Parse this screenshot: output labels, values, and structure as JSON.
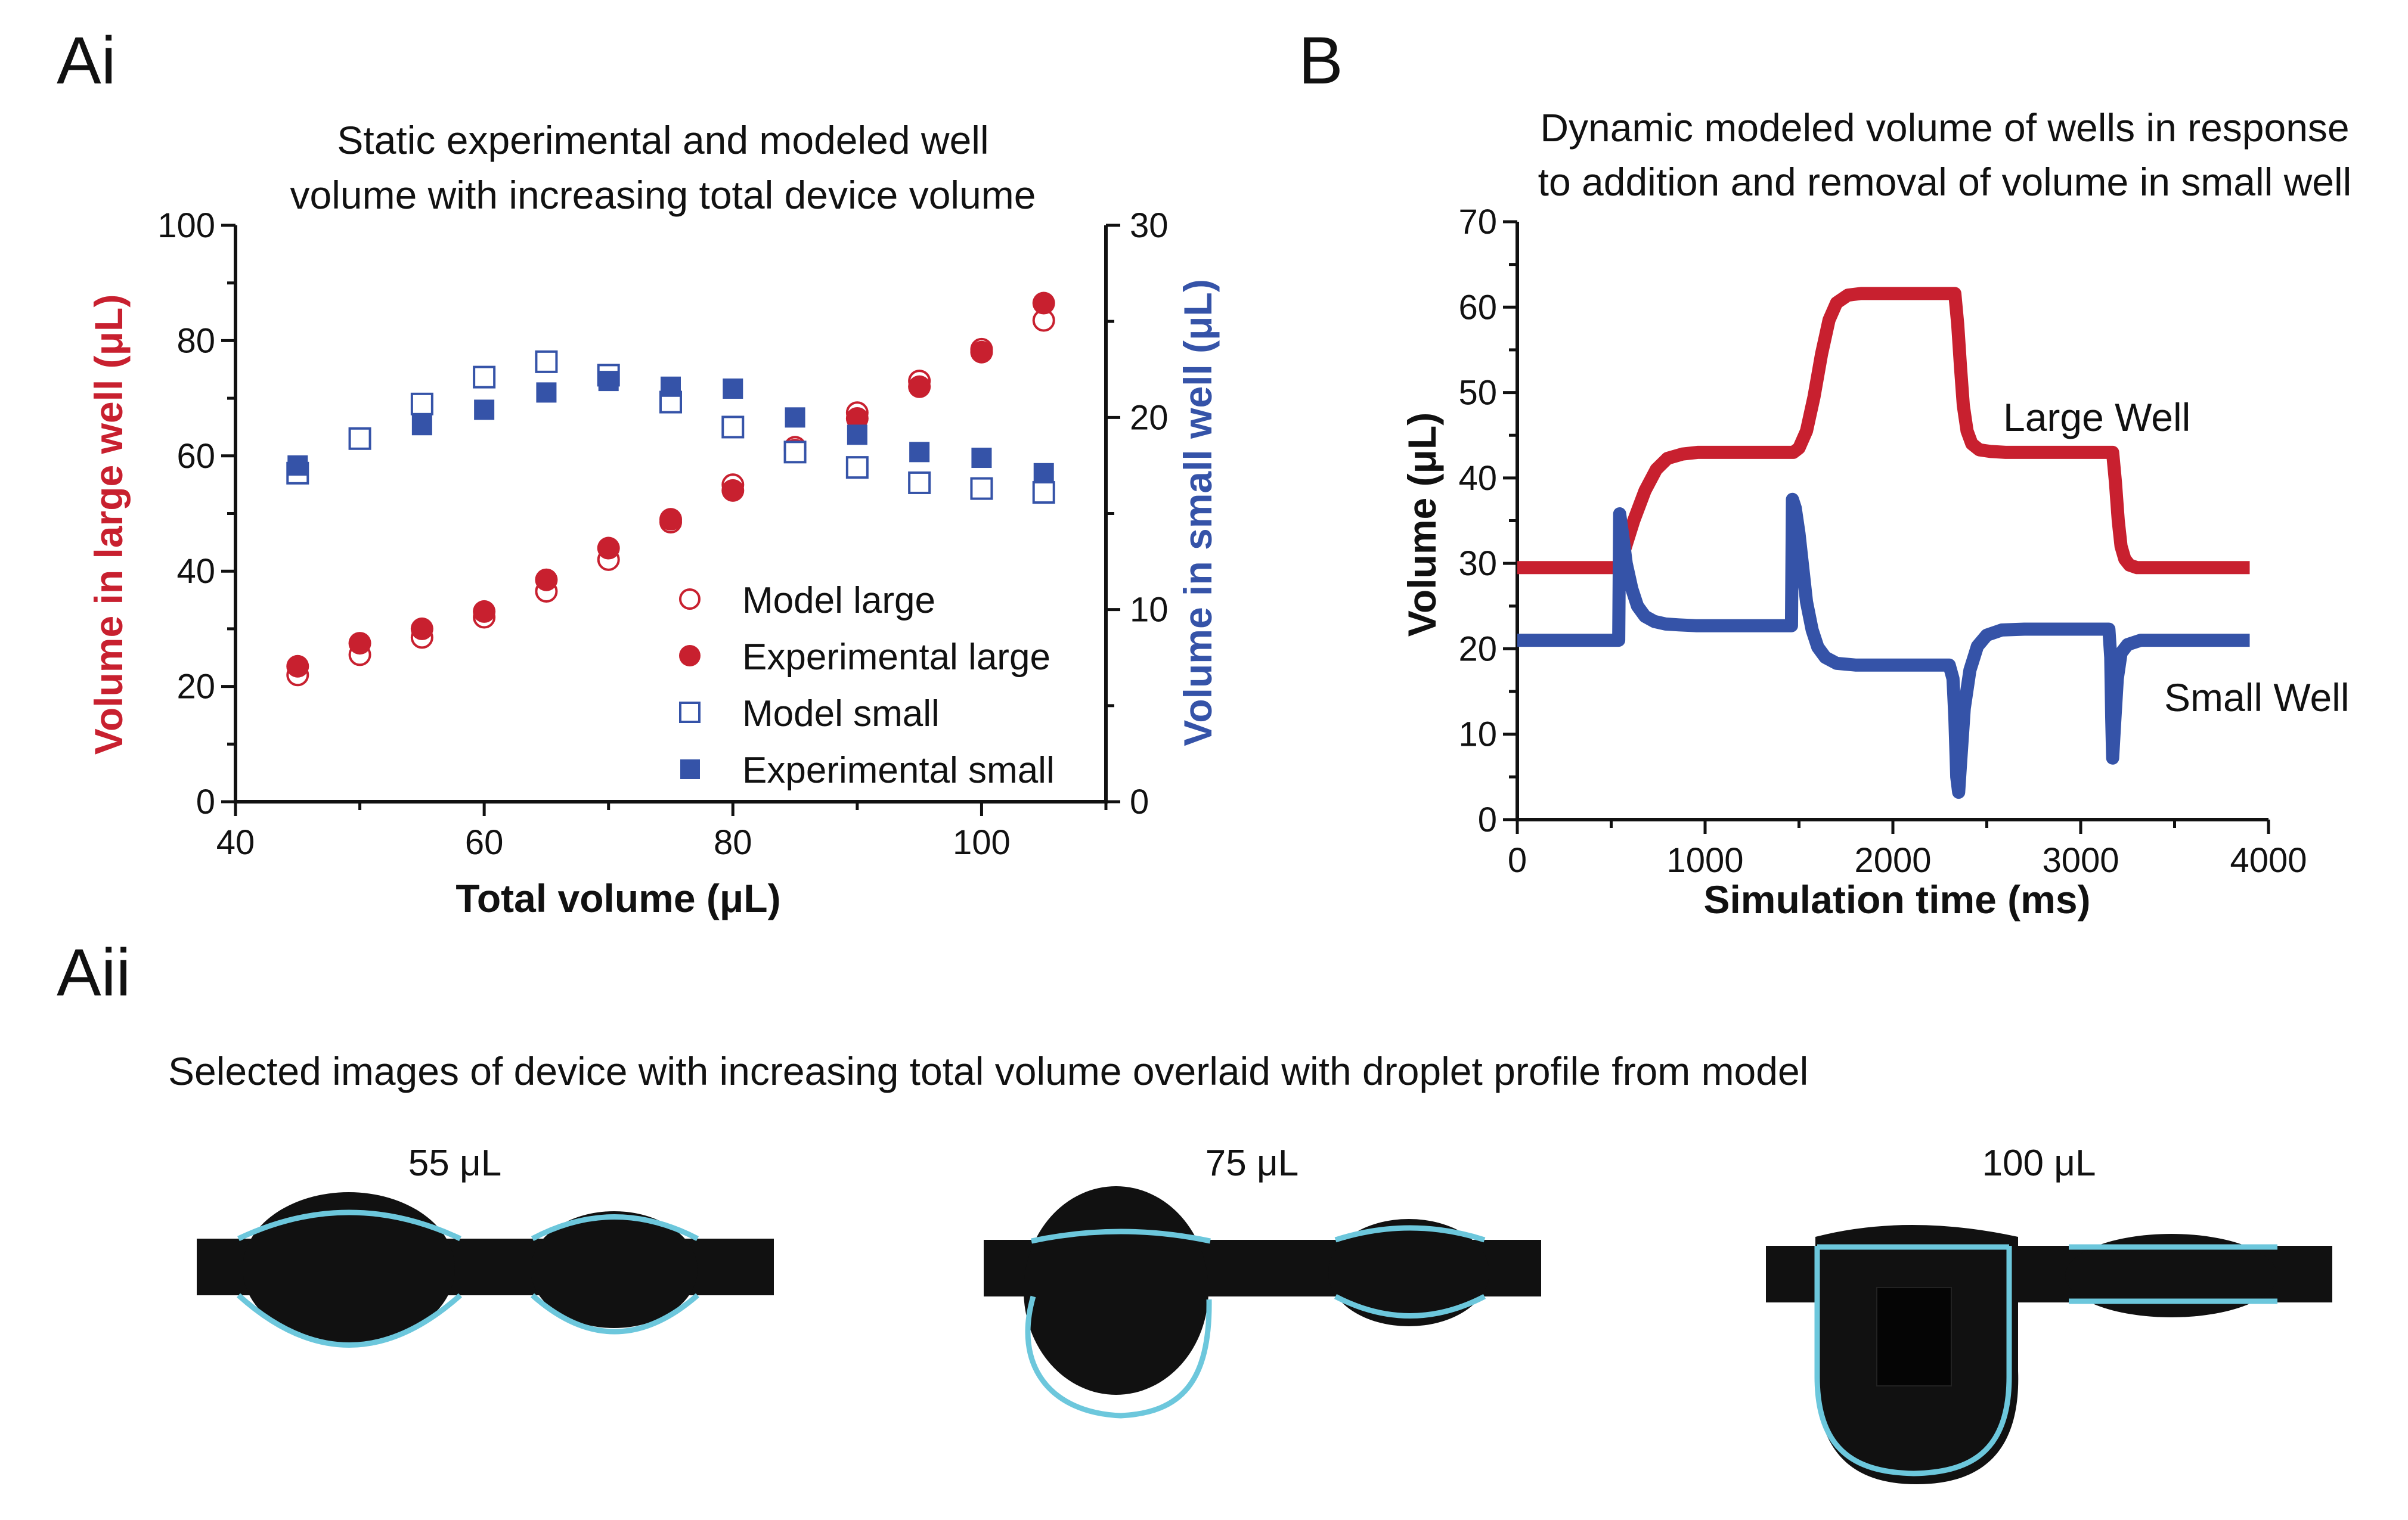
{
  "colors": {
    "red": "#c8202f",
    "blue": "#3553a8",
    "cyan": "#6cc7dc",
    "black": "#111111"
  },
  "panels": {
    "ai": {
      "label": "Ai"
    },
    "b": {
      "label": "B"
    },
    "aii": {
      "label": "Aii",
      "caption": "Selected images of device with increasing total volume overlaid with droplet profile from model",
      "images": [
        {
          "label": "55 μL"
        },
        {
          "label": "75 μL"
        },
        {
          "label": "100 μL"
        }
      ]
    }
  },
  "chart_data": [
    {
      "id": "ai",
      "type": "scatter",
      "title": "Static experimental and modeled well volume with increasing total device volume",
      "title_lines": [
        "Static experimental and modeled well",
        "volume with increasing total device volume"
      ],
      "xlabel": "Total volume (μL)",
      "ylabel_left": "Volume in large well (μL)",
      "ylabel_right": "Volume in small well (μL)",
      "xlim": [
        40,
        110
      ],
      "ylim_left": [
        0,
        100
      ],
      "ylim_right": [
        0,
        30
      ],
      "xticks": [
        40,
        60,
        80,
        100
      ],
      "yticks_left": [
        0,
        20,
        40,
        60,
        80,
        100
      ],
      "yticks_right": [
        0,
        10,
        20,
        30
      ],
      "legend_position": "bottom-right",
      "series": [
        {
          "name": "Model large",
          "axis": "left",
          "marker": "open-circle",
          "color": "#c8202f",
          "x": [
            45,
            50,
            55,
            60,
            65,
            70,
            75,
            80,
            85,
            90,
            95,
            100,
            105
          ],
          "y": [
            22,
            25.5,
            28.5,
            32,
            36.5,
            42,
            48.5,
            55,
            61.5,
            67.5,
            73,
            78.5,
            83.5
          ]
        },
        {
          "name": "Experimental large",
          "axis": "left",
          "marker": "filled-circle",
          "color": "#c8202f",
          "x": [
            45,
            50,
            55,
            60,
            65,
            70,
            75,
            80,
            85,
            90,
            95,
            100,
            105
          ],
          "y": [
            23.5,
            27.5,
            30,
            33,
            38.5,
            44,
            49,
            54,
            61,
            66.5,
            72,
            78,
            86.5
          ]
        },
        {
          "name": "Model small",
          "axis": "right",
          "marker": "open-square",
          "color": "#3553a8",
          "x": [
            45,
            50,
            55,
            60,
            65,
            70,
            75,
            80,
            85,
            90,
            95,
            100,
            105
          ],
          "y": [
            17.1,
            18.9,
            20.7,
            22.1,
            22.9,
            22.2,
            20.8,
            19.5,
            18.2,
            17.4,
            16.6,
            16.3,
            16.1
          ]
        },
        {
          "name": "Experimental small",
          "axis": "right",
          "marker": "filled-square",
          "color": "#3553a8",
          "x": [
            45,
            55,
            60,
            65,
            70,
            75,
            80,
            85,
            90,
            95,
            100,
            105
          ],
          "y": [
            17.5,
            19.6,
            20.4,
            21.3,
            21.9,
            21.6,
            21.5,
            20.0,
            19.1,
            18.2,
            17.9,
            17.1
          ]
        }
      ]
    },
    {
      "id": "b",
      "type": "line",
      "title": "Dynamic modeled volume of wells in response to addition and removal of volume in small well",
      "title_lines": [
        "Dynamic modeled volume of wells in response",
        "to addition and removal of volume in small well"
      ],
      "xlabel": "Simulation time (ms)",
      "ylabel": "Volume (μL)",
      "xlim": [
        0,
        4000
      ],
      "ylim": [
        0,
        70
      ],
      "xticks": [
        0,
        1000,
        2000,
        3000,
        4000
      ],
      "yticks": [
        0,
        10,
        20,
        30,
        40,
        50,
        60,
        70
      ],
      "series": [
        {
          "name": "Large Well",
          "color": "#c8202f",
          "x": [
            0,
            540,
            570,
            620,
            680,
            740,
            800,
            880,
            960,
            1050,
            1470,
            1500,
            1540,
            1580,
            1620,
            1660,
            1700,
            1760,
            1830,
            1900,
            2330,
            2345,
            2360,
            2375,
            2395,
            2420,
            2460,
            2520,
            2600,
            3170,
            3185,
            3200,
            3215,
            3235,
            3260,
            3300,
            3350,
            3900
          ],
          "y": [
            29.5,
            29.5,
            31.5,
            35,
            38.5,
            41,
            42.3,
            42.8,
            43,
            43,
            43,
            43.5,
            45.5,
            49.5,
            54.5,
            58.5,
            60.5,
            61.4,
            61.6,
            61.6,
            61.6,
            58,
            53,
            48.5,
            45.5,
            44,
            43.3,
            43.1,
            43,
            43,
            39.5,
            35,
            32,
            30.5,
            29.8,
            29.5,
            29.5,
            29.5
          ]
        },
        {
          "name": "Small Well",
          "color": "#3553a8",
          "x": [
            0,
            540,
            545,
            560,
            580,
            610,
            640,
            680,
            730,
            790,
            860,
            950,
            1050,
            1460,
            1465,
            1480,
            1500,
            1520,
            1540,
            1570,
            1600,
            1640,
            1700,
            1800,
            2300,
            2320,
            2330,
            2340,
            2350,
            2360,
            2380,
            2410,
            2450,
            2500,
            2580,
            2700,
            3150,
            3160,
            3165,
            3170,
            3180,
            3195,
            3215,
            3250,
            3320,
            3900
          ],
          "y": [
            21,
            21,
            35.8,
            33.5,
            30,
            27,
            25,
            23.8,
            23.2,
            22.9,
            22.8,
            22.7,
            22.7,
            22.7,
            37.5,
            36.5,
            33.5,
            29.5,
            25.5,
            22.2,
            20.2,
            19,
            18.3,
            18.1,
            18.1,
            16.5,
            12,
            5,
            3.2,
            6.5,
            13,
            17.5,
            20.3,
            21.6,
            22.2,
            22.3,
            22.3,
            19,
            12,
            7.2,
            11,
            16.5,
            19.5,
            20.5,
            21,
            21
          ]
        }
      ]
    }
  ]
}
